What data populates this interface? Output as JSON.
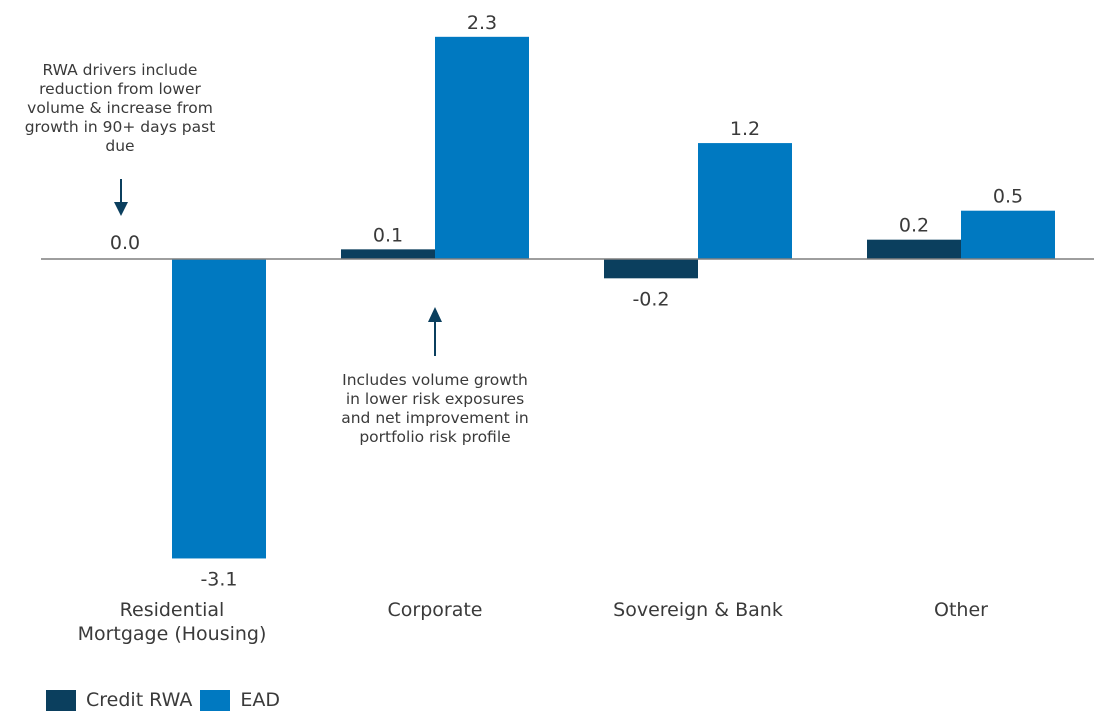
{
  "chart_data": {
    "type": "bar",
    "categories": [
      "Residential\nMortgage (Housing)",
      "Corporate",
      "Sovereign & Bank",
      "Other"
    ],
    "series": [
      {
        "name": "Credit RWA",
        "values": [
          0.0,
          0.1,
          -0.2,
          0.2
        ],
        "labels": [
          "0.0",
          "0.1",
          "-0.2",
          "0.2"
        ],
        "color": "#0b3f5e"
      },
      {
        "name": "EAD",
        "values": [
          -3.1,
          2.3,
          1.2,
          0.5
        ],
        "labels": [
          "-3.1",
          "2.3",
          "1.2",
          "0.5"
        ],
        "color": "#0079c1"
      }
    ],
    "ylim": [
      -3.1,
      2.3
    ],
    "grid": false,
    "legend_position": "bottom-left",
    "annotations": [
      {
        "text": "RWA drivers include reduction from lower volume & increase from growth in 90+ days past due",
        "category": "Residential\nMortgage (Housing)",
        "arrow": "down"
      },
      {
        "text": "Includes volume growth in lower risk exposures and net improvement in portfolio risk profile",
        "category": "Corporate",
        "arrow": "up"
      }
    ]
  },
  "colors": {
    "axis": "#7f7f7f",
    "text": "#3a3a3a",
    "arrow": "#0b3f5e"
  }
}
